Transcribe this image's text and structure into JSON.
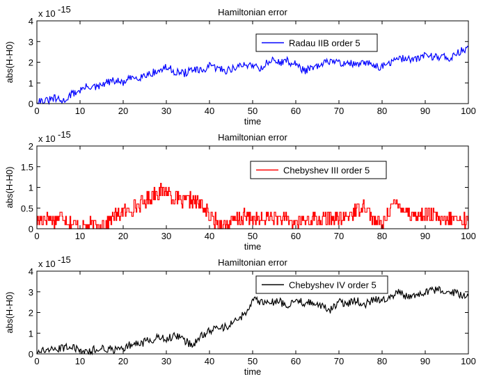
{
  "figure": {
    "background": "#ffffff"
  },
  "chart_data": [
    {
      "type": "line",
      "title": "Hamiltonian error",
      "xlabel": "time",
      "ylabel": "abs(H-H0)",
      "exponent_label": "x 10",
      "exponent_power": "-15",
      "xlim": [
        0,
        100
      ],
      "ylim": [
        0,
        4
      ],
      "xticks": [
        "0",
        "10",
        "20",
        "30",
        "40",
        "50",
        "60",
        "70",
        "80",
        "90",
        "100"
      ],
      "yticks": [
        "0",
        "1",
        "2",
        "3",
        "4"
      ],
      "legend": "top-right",
      "series": [
        {
          "name": "Radau IIB order 5",
          "color": "#0000ff",
          "x": [
            0,
            2,
            4,
            6,
            8,
            10,
            12,
            14,
            16,
            18,
            20,
            22,
            24,
            26,
            28,
            30,
            32,
            34,
            36,
            38,
            40,
            42,
            44,
            46,
            48,
            50,
            52,
            54,
            56,
            58,
            60,
            62,
            64,
            66,
            68,
            70,
            72,
            74,
            76,
            78,
            80,
            82,
            84,
            86,
            88,
            90,
            92,
            94,
            96,
            98,
            100
          ],
          "y": [
            0.15,
            0.1,
            0.25,
            0.1,
            0.45,
            0.65,
            0.85,
            0.75,
            1.0,
            1.1,
            1.0,
            1.25,
            1.3,
            1.45,
            1.55,
            1.75,
            1.55,
            1.45,
            1.65,
            1.55,
            1.8,
            1.7,
            1.6,
            1.75,
            1.85,
            1.9,
            1.7,
            2.1,
            2.0,
            2.05,
            1.9,
            1.6,
            1.7,
            1.85,
            2.1,
            1.95,
            2.0,
            1.85,
            1.95,
            1.9,
            1.75,
            2.0,
            2.15,
            2.2,
            2.1,
            2.4,
            2.25,
            2.3,
            2.2,
            2.5,
            2.75
          ]
        }
      ]
    },
    {
      "type": "line",
      "title": "Hamiltonian error",
      "xlabel": "time",
      "ylabel": "abs(H-H0)",
      "exponent_label": "x 10",
      "exponent_power": "-15",
      "xlim": [
        0,
        100
      ],
      "ylim": [
        0,
        2
      ],
      "xticks": [
        "0",
        "10",
        "20",
        "30",
        "40",
        "50",
        "60",
        "70",
        "80",
        "90",
        "100"
      ],
      "yticks": [
        "0",
        "0.5",
        "1",
        "1.5",
        "2"
      ],
      "legend": "top-right",
      "series": [
        {
          "name": "Chebyshev III order 5",
          "color": "#ff0000",
          "x": [
            0,
            2,
            4,
            6,
            8,
            10,
            12,
            14,
            16,
            18,
            20,
            22,
            24,
            26,
            28,
            30,
            32,
            34,
            36,
            38,
            40,
            42,
            44,
            46,
            48,
            50,
            52,
            54,
            56,
            58,
            60,
            62,
            64,
            66,
            68,
            70,
            72,
            74,
            76,
            78,
            80,
            82,
            84,
            86,
            88,
            90,
            92,
            94,
            96,
            98,
            100
          ],
          "y": [
            0.15,
            0.3,
            0.2,
            0.35,
            0.1,
            0.05,
            0.1,
            0.05,
            0.15,
            0.3,
            0.4,
            0.5,
            0.6,
            0.75,
            0.9,
            0.95,
            0.7,
            0.65,
            0.7,
            0.6,
            0.3,
            0.15,
            0.1,
            0.2,
            0.3,
            0.25,
            0.2,
            0.3,
            0.25,
            0.2,
            0.15,
            0.2,
            0.25,
            0.2,
            0.3,
            0.2,
            0.3,
            0.45,
            0.6,
            0.2,
            0.1,
            0.55,
            0.6,
            0.4,
            0.3,
            0.35,
            0.3,
            0.15,
            0.25,
            0.2,
            0.2
          ]
        }
      ]
    },
    {
      "type": "line",
      "title": "Hamiltonian error",
      "xlabel": "time",
      "ylabel": "abs(H-H0)",
      "exponent_label": "x 10",
      "exponent_power": "-15",
      "xlim": [
        0,
        100
      ],
      "ylim": [
        0,
        4
      ],
      "xticks": [
        "0",
        "10",
        "20",
        "30",
        "40",
        "50",
        "60",
        "70",
        "80",
        "90",
        "100"
      ],
      "yticks": [
        "0",
        "1",
        "2",
        "3",
        "4"
      ],
      "legend": "top-right",
      "series": [
        {
          "name": "Chebyshev IV order 5",
          "color": "#000000",
          "x": [
            0,
            2,
            4,
            6,
            8,
            10,
            12,
            14,
            16,
            18,
            20,
            22,
            24,
            26,
            28,
            30,
            32,
            34,
            36,
            38,
            40,
            42,
            44,
            46,
            48,
            50,
            52,
            54,
            56,
            58,
            60,
            62,
            64,
            66,
            68,
            70,
            72,
            74,
            76,
            78,
            80,
            82,
            84,
            86,
            88,
            90,
            92,
            94,
            96,
            98,
            100
          ],
          "y": [
            0.1,
            0.2,
            0.15,
            0.3,
            0.4,
            0.1,
            0.05,
            0.3,
            0.25,
            0.2,
            0.3,
            0.45,
            0.5,
            0.65,
            0.8,
            0.75,
            0.85,
            0.7,
            0.4,
            0.85,
            1.1,
            1.25,
            1.3,
            1.6,
            1.9,
            2.6,
            2.5,
            2.45,
            2.55,
            2.3,
            2.6,
            2.45,
            2.5,
            2.35,
            2.1,
            2.5,
            2.45,
            2.6,
            2.4,
            2.6,
            2.6,
            2.8,
            3.0,
            2.7,
            2.75,
            3.0,
            3.05,
            3.1,
            3.0,
            2.85,
            2.8
          ]
        }
      ]
    }
  ]
}
